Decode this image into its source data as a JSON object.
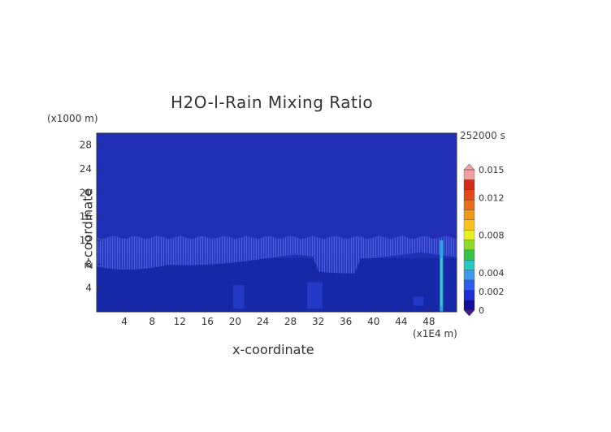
{
  "chart_data": {
    "type": "heatmap",
    "title": "H2O-l-Rain Mixing Ratio",
    "xlabel": "x-coordinate",
    "ylabel": "z-coordinate",
    "x_unit": "(x1E4 m)",
    "y_unit": "(x1000 m)",
    "time": "252000 s",
    "xlim": [
      0,
      52
    ],
    "ylim": [
      0,
      30
    ],
    "x_ticks": [
      4,
      8,
      12,
      16,
      20,
      24,
      28,
      32,
      36,
      40,
      44,
      48
    ],
    "y_ticks": [
      4,
      8,
      12,
      16,
      20,
      24,
      28
    ],
    "colorbar": {
      "min": 0,
      "max": 0.015,
      "tick_values": [
        0,
        0.002,
        0.004,
        0.008,
        0.012,
        0.015
      ],
      "tick_labels": [
        "0",
        "0.002",
        "0.004",
        "0.008",
        "0.012",
        "0.015"
      ],
      "colors": [
        "#101098",
        "#1e2ed0",
        "#2f5fe8",
        "#3a9af0",
        "#29c7c2",
        "#38c24a",
        "#8fdc28",
        "#e6f020",
        "#f7c21a",
        "#f09818",
        "#ea6e18",
        "#e24818",
        "#d62a1c",
        "#f0a0a0"
      ]
    },
    "field": {
      "background_value": 0,
      "features": [
        {
          "name": "faint rain band",
          "value": 0.0004,
          "z_range": [
            9,
            12.5
          ],
          "x_range": [
            0,
            52
          ]
        },
        {
          "name": "streak near x=50",
          "value": 0.003,
          "x": 49.8,
          "z_range": [
            0,
            12
          ]
        }
      ]
    }
  }
}
